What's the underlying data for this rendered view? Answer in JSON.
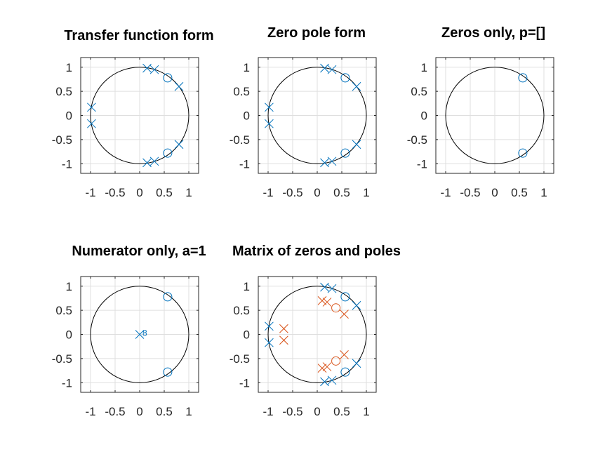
{
  "colors": {
    "series1": "#0072bd",
    "series2": "#d95319",
    "grid": "#dfdfdf",
    "axes": "#262626",
    "unit_circle": "#000000"
  },
  "chart_data": [
    {
      "type": "scatter",
      "title": "Transfer function form",
      "xlim": [
        -1.2,
        1.2
      ],
      "ylim": [
        -1.2,
        1.2
      ],
      "xticks": [
        "-1",
        "-0.5",
        "0",
        "0.5",
        "1"
      ],
      "yticks": [
        "1",
        "0.5",
        "0",
        "-0.5",
        "-1"
      ],
      "grid": true,
      "unit_circle": true,
      "series": [
        {
          "zeros": [
            [
              0.57,
              0.78
            ],
            [
              0.57,
              -0.78
            ]
          ],
          "poles": [
            [
              0.15,
              0.98
            ],
            [
              0.3,
              0.95
            ],
            [
              0.8,
              0.6
            ],
            [
              -0.98,
              0.17
            ],
            [
              -0.98,
              -0.17
            ],
            [
              0.15,
              -0.98
            ],
            [
              0.3,
              -0.95
            ],
            [
              0.8,
              -0.6
            ]
          ]
        }
      ]
    },
    {
      "type": "scatter",
      "title": "Zero pole form",
      "xlim": [
        -1.2,
        1.2
      ],
      "ylim": [
        -1.2,
        1.2
      ],
      "xticks": [
        "-1",
        "-0.5",
        "0",
        "0.5",
        "1"
      ],
      "yticks": [
        "1",
        "0.5",
        "0",
        "-0.5",
        "-1"
      ],
      "grid": true,
      "unit_circle": true,
      "series": [
        {
          "zeros": [
            [
              0.57,
              0.78
            ],
            [
              0.57,
              -0.78
            ]
          ],
          "poles": [
            [
              0.15,
              0.98
            ],
            [
              0.3,
              0.95
            ],
            [
              0.8,
              0.6
            ],
            [
              -0.98,
              0.17
            ],
            [
              -0.98,
              -0.17
            ],
            [
              0.15,
              -0.98
            ],
            [
              0.3,
              -0.95
            ],
            [
              0.8,
              -0.6
            ]
          ]
        }
      ]
    },
    {
      "type": "scatter",
      "title": "Zeros only, p=[]",
      "xlim": [
        -1.2,
        1.2
      ],
      "ylim": [
        -1.2,
        1.2
      ],
      "xticks": [
        "-1",
        "-0.5",
        "0",
        "0.5",
        "1"
      ],
      "yticks": [
        "1",
        "0.5",
        "0",
        "-0.5",
        "-1"
      ],
      "grid": true,
      "unit_circle": true,
      "series": [
        {
          "zeros": [
            [
              0.57,
              0.78
            ],
            [
              0.57,
              -0.78
            ]
          ],
          "poles": []
        }
      ]
    },
    {
      "type": "scatter",
      "title": "Numerator only, a=1",
      "xlim": [
        -1.2,
        1.2
      ],
      "ylim": [
        -1.2,
        1.2
      ],
      "xticks": [
        "-1",
        "-0.5",
        "0",
        "0.5",
        "1"
      ],
      "yticks": [
        "1",
        "0.5",
        "0",
        "-0.5",
        "-1"
      ],
      "grid": true,
      "unit_circle": true,
      "series": [
        {
          "zeros": [
            [
              0.57,
              0.78
            ],
            [
              0.57,
              -0.78
            ]
          ],
          "poles": [
            [
              0,
              0
            ]
          ],
          "pole_multiplicity_label": "8"
        }
      ]
    },
    {
      "type": "scatter",
      "title": "Matrix of zeros and poles",
      "xlim": [
        -1.2,
        1.2
      ],
      "ylim": [
        -1.2,
        1.2
      ],
      "xticks": [
        "-1",
        "-0.5",
        "0",
        "0.5",
        "1"
      ],
      "yticks": [
        "1",
        "0.5",
        "0",
        "-0.5",
        "-1"
      ],
      "grid": true,
      "unit_circle": true,
      "series": [
        {
          "zeros": [
            [
              0.57,
              0.78
            ],
            [
              0.57,
              -0.78
            ]
          ],
          "poles": [
            [
              0.15,
              0.98
            ],
            [
              0.3,
              0.95
            ],
            [
              0.8,
              0.6
            ],
            [
              -0.98,
              0.17
            ],
            [
              -0.98,
              -0.17
            ],
            [
              0.15,
              -0.98
            ],
            [
              0.3,
              -0.95
            ],
            [
              0.8,
              -0.6
            ]
          ]
        },
        {
          "zeros": [
            [
              0.38,
              0.55
            ],
            [
              0.38,
              -0.55
            ]
          ],
          "poles": [
            [
              0.1,
              0.7
            ],
            [
              0.2,
              0.67
            ],
            [
              0.55,
              0.42
            ],
            [
              -0.68,
              0.12
            ],
            [
              -0.68,
              -0.12
            ],
            [
              0.1,
              -0.7
            ],
            [
              0.2,
              -0.67
            ],
            [
              0.55,
              -0.42
            ]
          ]
        }
      ]
    }
  ]
}
